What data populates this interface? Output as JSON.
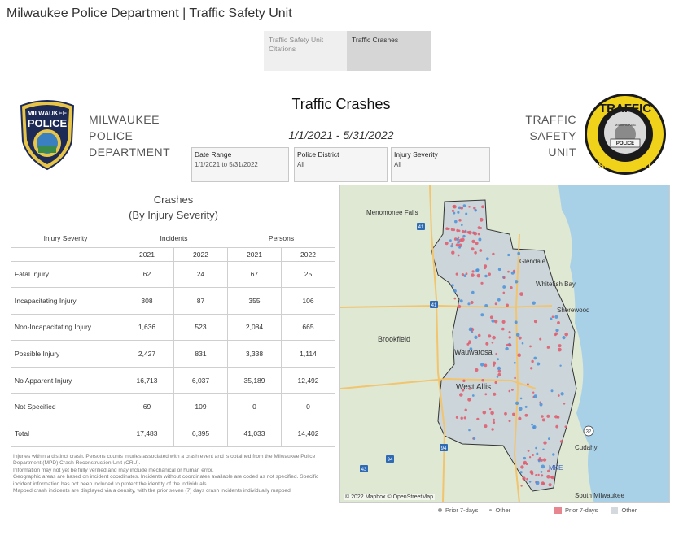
{
  "app": {
    "title": "Milwaukee Police Department | Traffic Safety Unit"
  },
  "tabs": [
    {
      "label": "Traffic Safety Unit Citations",
      "active": false
    },
    {
      "label": "Traffic Crashes",
      "active": true
    }
  ],
  "header": {
    "title": "Traffic Crashes",
    "date_range": "1/1/2021 - 5/31/2022",
    "police_lines": [
      "MILWAUKEE",
      "POLICE",
      "DEPARTMENT"
    ],
    "tsu_lines": [
      "TRAFFIC",
      "SAFETY",
      "UNIT"
    ],
    "police_logo_text": [
      "MILWAUKEE",
      "POLICE"
    ],
    "tsu_logo_text": [
      "TRAFFIC",
      "SAFETY UNIT",
      "MILWAUKEE",
      "POLICE"
    ]
  },
  "filters": [
    {
      "label": "Date Range",
      "value": "1/1/2021 to 5/31/2022"
    },
    {
      "label": "Police District",
      "value": "All"
    },
    {
      "label": "Injury Severity",
      "value": "All"
    }
  ],
  "crashes": {
    "title_line1": "Crashes",
    "title_line2": "(By Injury Severity)",
    "col_injury": "Injury Severity",
    "col_incidents": "Incidents",
    "col_persons": "Persons",
    "years": [
      "2021",
      "2022",
      "2021",
      "2022"
    ],
    "rows": [
      {
        "label": "Fatal Injury",
        "values": [
          "62",
          "24",
          "67",
          "25"
        ]
      },
      {
        "label": "Incapacitating Injury",
        "values": [
          "308",
          "87",
          "355",
          "106"
        ]
      },
      {
        "label": "Non-Incapacitating Injury",
        "values": [
          "1,636",
          "523",
          "2,084",
          "665"
        ]
      },
      {
        "label": "Possible Injury",
        "values": [
          "2,427",
          "831",
          "3,338",
          "1,114"
        ]
      },
      {
        "label": "No Apparent Injury",
        "values": [
          "16,713",
          "6,037",
          "35,189",
          "12,492"
        ]
      },
      {
        "label": "Not Specified",
        "values": [
          "69",
          "109",
          "0",
          "0"
        ]
      },
      {
        "label": "Total",
        "values": [
          "17,483",
          "6,395",
          "41,033",
          "14,402"
        ]
      }
    ]
  },
  "footnote": [
    "Injuries within a distinct crash. Persons counts injuries associated with a crash event and is obtained from the Milwaukee Police Department (MPD) Crash Reconstruction Unit (CRU).",
    "Information may not yet be fully verified and may include mechanical or human error.",
    "Geographic areas are based on incident coordinates. Incidents without coordinates available are coded as not specified. Specific incident information has not been included to protect the identity of the individuals",
    "Mapped crash incidents are displayed via a density, with the prior seven (7) days crash incidents individually mapped."
  ],
  "map": {
    "attribution": "© 2022 Mapbox © OpenStreetMap",
    "places": [
      "Menomonee Falls",
      "Glendale",
      "Whitefish Bay",
      "Shorewood",
      "Brookfield",
      "Wauwatosa",
      "West Allis",
      "Cudahy",
      "South Milwaukee",
      "MKE"
    ],
    "highways": [
      "41",
      "41",
      "94",
      "94",
      "43",
      "32"
    ],
    "colors": {
      "water": "#a8d1e8",
      "land": "#dfe8d3",
      "district": "#c9d2da",
      "crash": "#e0586a"
    }
  },
  "legend": {
    "points_prior": "Prior 7-days",
    "points_other": "Other",
    "density_prior": "Prior 7-days",
    "density_other": "Other"
  }
}
